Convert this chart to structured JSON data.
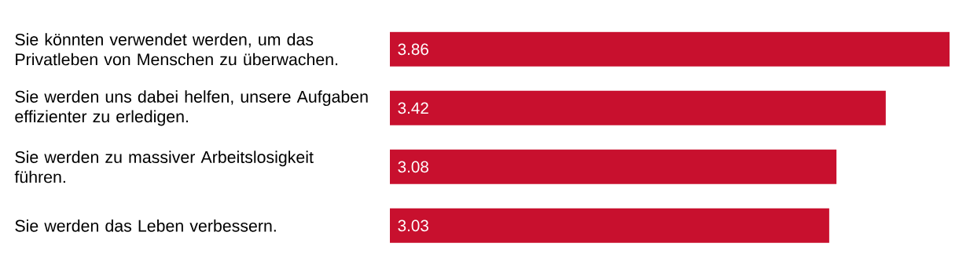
{
  "chart_data": {
    "type": "bar",
    "orientation": "horizontal",
    "categories": [
      "Sie könnten verwendet werden, um das Privatleben von Menschen zu überwachen.",
      "Sie werden uns dabei helfen, unsere Aufgaben effizienter zu erledigen.",
      "Sie werden zu massiver Arbeitslosigkeit führen.",
      "Sie werden das Leben verbessern."
    ],
    "values": [
      3.86,
      3.42,
      3.08,
      3.03
    ],
    "color": "#c8102e",
    "data_labels": true,
    "tick_labels": "y"
  }
}
